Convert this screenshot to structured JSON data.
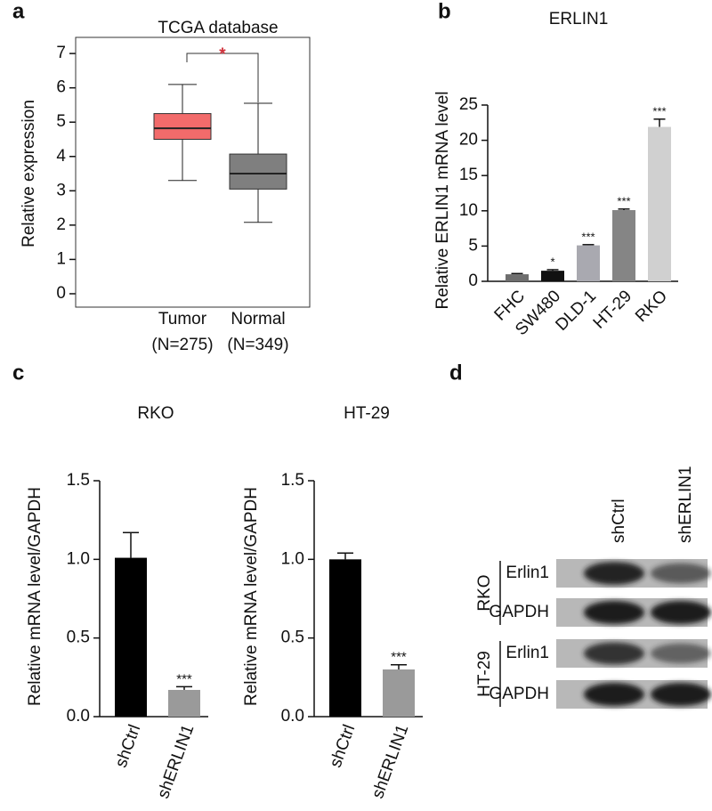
{
  "panels": [
    "a",
    "b",
    "c",
    "d"
  ],
  "chart_data": [
    {
      "type": "box",
      "title": "TCGA database",
      "y_label": "Relative expression",
      "categories": [
        "Tumor",
        "Normal"
      ],
      "n_labels": [
        "(N=275)",
        "(N=349)"
      ],
      "colors": [
        "#f26b6b",
        "#7f7f7f"
      ],
      "boxes": [
        {
          "whislo": 3.3,
          "q1": 4.5,
          "med": 4.82,
          "q3": 5.25,
          "whishi": 6.1
        },
        {
          "whislo": 2.08,
          "q1": 3.05,
          "med": 3.5,
          "q3": 4.07,
          "whishi": 5.55
        }
      ],
      "significance": "*",
      "ylim": [
        -0.39,
        7.47
      ],
      "yticks": [
        0,
        1,
        2,
        3,
        4,
        5,
        6,
        7
      ]
    },
    {
      "type": "bar",
      "title": "ERLIN1",
      "y_label": "Relative ERLIN1 mRNA level",
      "categories": [
        "FHC",
        "SW480",
        "DLD-1",
        "HT-29",
        "RKO"
      ],
      "values": [
        1,
        1.5,
        5.1,
        10.1,
        21.9
      ],
      "errors": [
        0.1,
        0.15,
        0.1,
        0.15,
        1.1
      ],
      "colors": [
        "#6e6e6e",
        "#111111",
        "#a9a9b0",
        "#858585",
        "#d0d0d0"
      ],
      "significance": [
        null,
        "*",
        "***",
        "***",
        "***"
      ],
      "ylim": [
        0,
        25
      ],
      "yticks": [
        0,
        5,
        10,
        15,
        20,
        25
      ]
    },
    {
      "type": "bar",
      "title": "RKO",
      "y_label": "Relative  mRNA level/GAPDH",
      "categories": [
        "shCtrl",
        "shERLIN1"
      ],
      "values": [
        1.01,
        0.17
      ],
      "errors": [
        0.16,
        0.02
      ],
      "colors": [
        "#000000",
        "#9a9a9a"
      ],
      "significance": [
        null,
        "***"
      ],
      "ylim": [
        0,
        1.5
      ],
      "yticks": [
        {
          "value": 0,
          "label": "0.0"
        },
        {
          "value": 0.5,
          "label": "0.5"
        },
        {
          "value": 1,
          "label": "1.0"
        },
        {
          "value": 1.5,
          "label": "1.5"
        }
      ]
    },
    {
      "type": "bar",
      "title": "HT-29",
      "y_label": "Relative  mRNA level/GAPDH",
      "categories": [
        "shCtrl",
        "shERLIN1"
      ],
      "values": [
        1.0,
        0.3
      ],
      "errors": [
        0.04,
        0.03
      ],
      "colors": [
        "#000000",
        "#9a9a9a"
      ],
      "significance": [
        null,
        "***"
      ],
      "ylim": [
        0,
        1.5
      ],
      "yticks": [
        {
          "value": 0,
          "label": "0.0"
        },
        {
          "value": 0.5,
          "label": "0.5"
        },
        {
          "value": 1,
          "label": "1.0"
        },
        {
          "value": 1.5,
          "label": "1.5"
        }
      ]
    }
  ],
  "blot": {
    "columns": [
      "shCtrl",
      "shERLIN1"
    ],
    "groups": [
      {
        "name": "RKO",
        "rows": [
          "Erlin1",
          "GAPDH"
        ]
      },
      {
        "name": "HT-29",
        "rows": [
          "Erlin1",
          "GAPDH"
        ]
      }
    ]
  }
}
